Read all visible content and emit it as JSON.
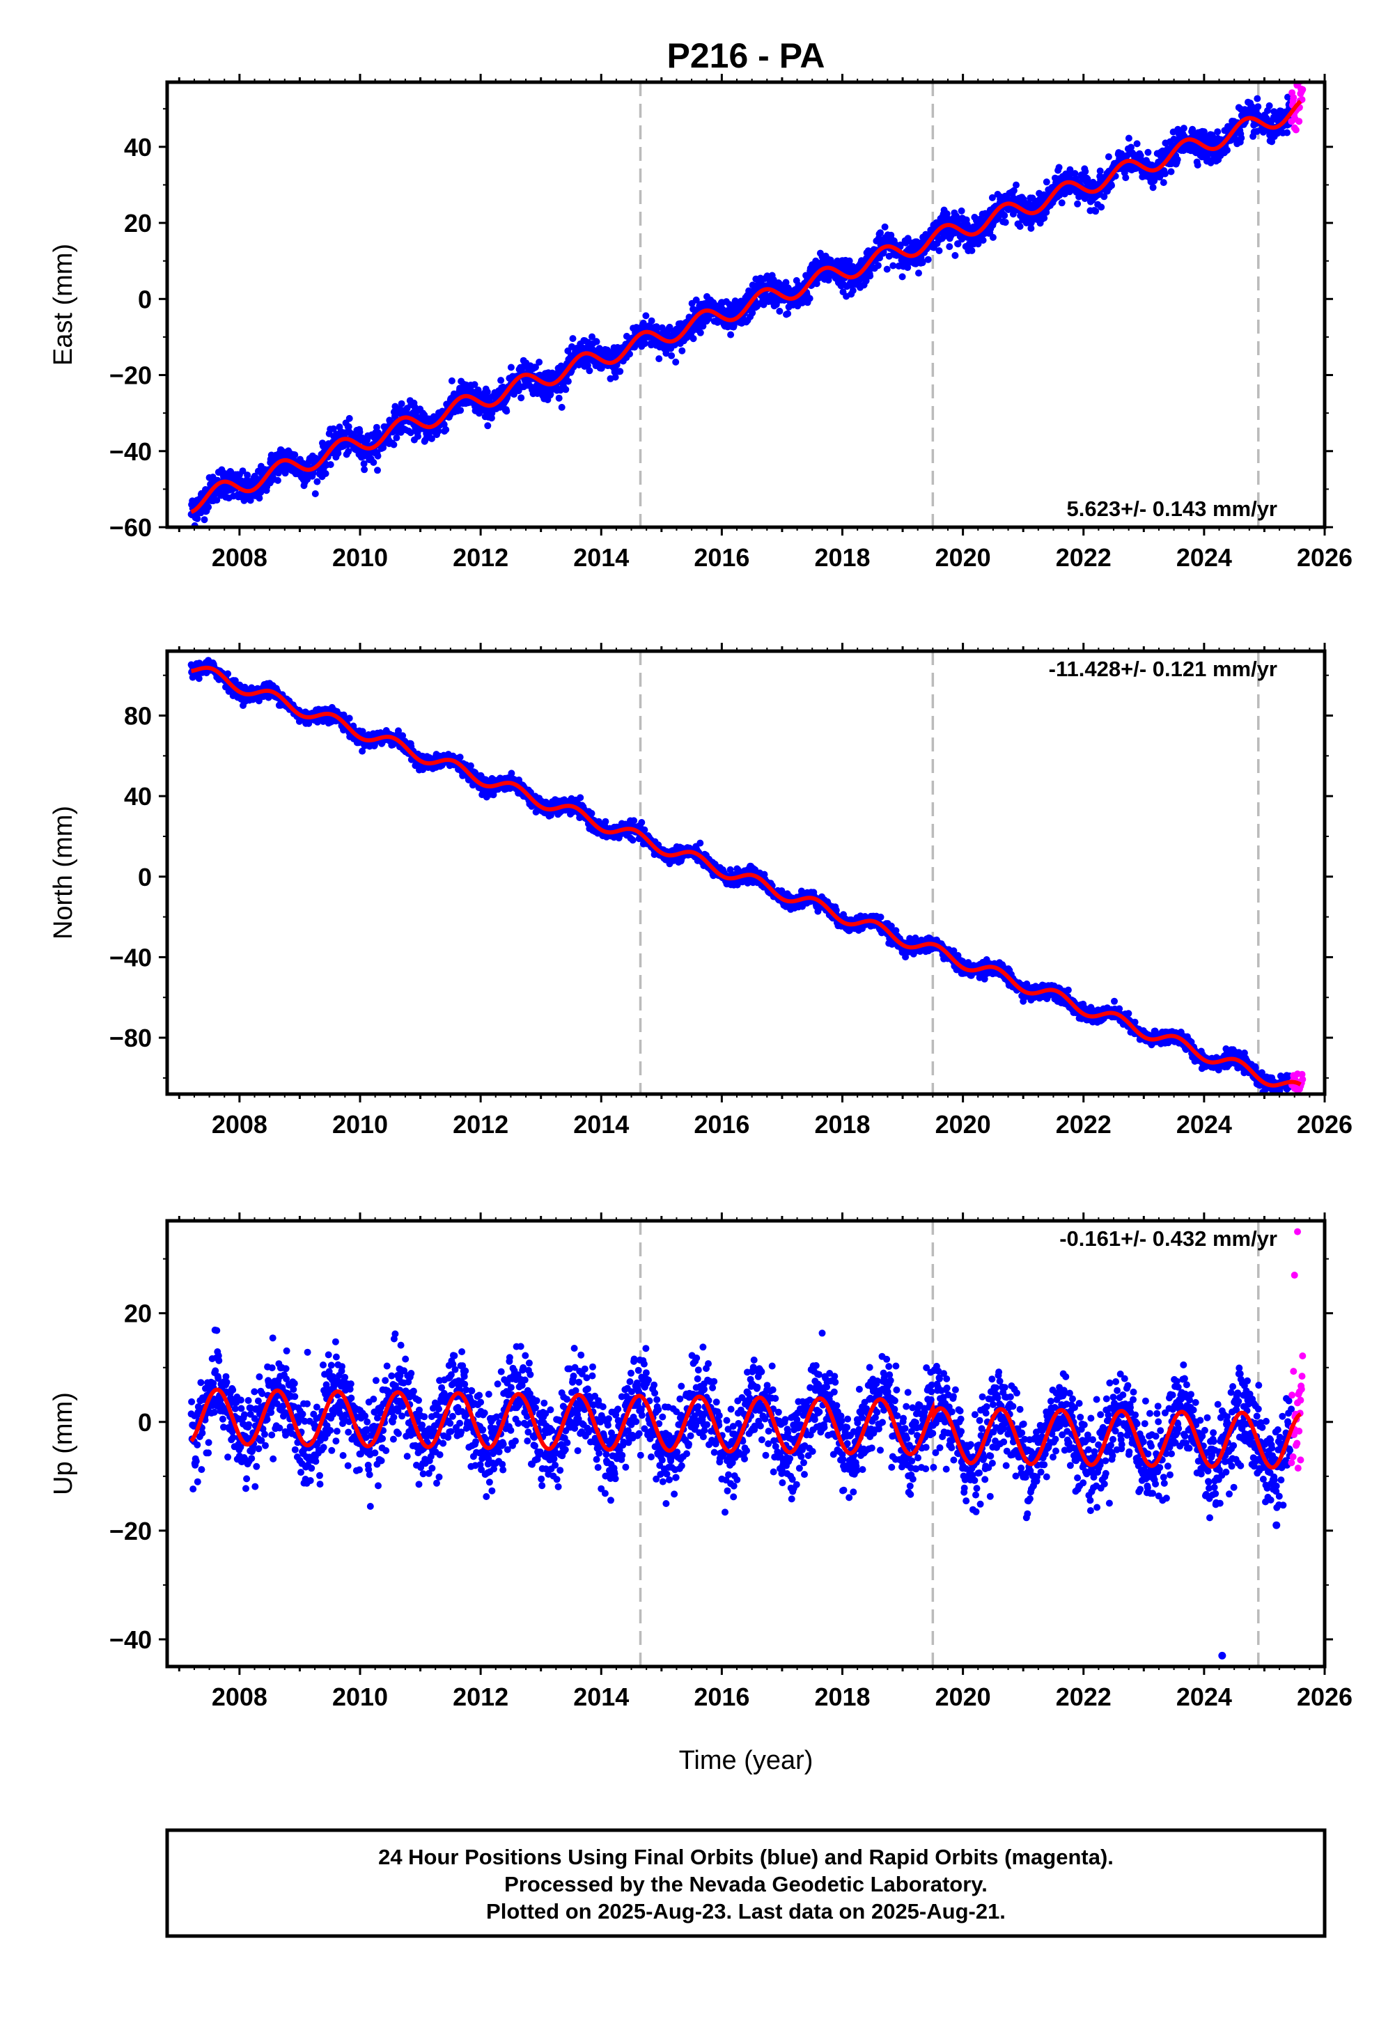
{
  "title": "P216 - PA",
  "colors": {
    "final_orbits": "#0000ff",
    "rapid_orbits": "#ff00ff",
    "model": "#ff0000",
    "event_lines": "#bbbbbb",
    "frame": "#000000"
  },
  "x_label": "Time (year)",
  "footer": {
    "line1": "24 Hour Positions Using Final Orbits (blue) and Rapid Orbits (magenta).",
    "line2": "Processed by the Nevada Geodetic Laboratory.",
    "line3": "Plotted on 2025-Aug-23. Last data on 2025-Aug-21."
  },
  "chart_data": [
    {
      "type": "scatter",
      "component": "east",
      "ylabel": "East (mm)",
      "xlim": [
        2006.8,
        2026.0
      ],
      "ylim": [
        -60,
        57
      ],
      "xticks": [
        2008,
        2010,
        2012,
        2014,
        2016,
        2018,
        2020,
        2022,
        2024,
        2026
      ],
      "yticks": [
        -60,
        -40,
        -20,
        0,
        20,
        40
      ],
      "rate_label": "5.623+/- 0.143 mm/yr",
      "rate_position": "bottom-right",
      "grid": false,
      "event_lines": [
        2014.65,
        2019.5,
        2024.9
      ],
      "final_span": [
        2007.2,
        2025.45
      ],
      "rapid_span": [
        2025.45,
        2025.64
      ],
      "model": {
        "start": 2007.2,
        "end": 2025.6,
        "intercept": -53.5,
        "rate": 5.623,
        "amp": 2.5,
        "phase": 0.45,
        "steps": [
          [
            2019.5,
            0
          ]
        ],
        "noise": 2.0
      },
      "series": [
        {
          "name": "Final Orbits (blue)",
          "x": [
            2007.3,
            2008.0,
            2010.0,
            2012.0,
            2014.0,
            2016.0,
            2018.0,
            2020.0,
            2022.0,
            2024.0,
            2025.4
          ],
          "y": [
            -53,
            -48,
            -37,
            -26,
            -15,
            -1,
            10,
            21,
            32,
            43,
            46
          ]
        },
        {
          "name": "Rapid Orbits (magenta)",
          "x": [
            2025.5,
            2025.55,
            2025.6
          ],
          "y": [
            45,
            50,
            54
          ]
        },
        {
          "name": "model",
          "x": [
            2007.2,
            2025.6
          ],
          "y": [
            -53.5,
            46.0
          ]
        }
      ]
    },
    {
      "type": "scatter",
      "component": "north",
      "ylabel": "North (mm)",
      "xlim": [
        2006.8,
        2026.0
      ],
      "ylim": [
        -108,
        112
      ],
      "xticks": [
        2008,
        2010,
        2012,
        2014,
        2016,
        2018,
        2020,
        2022,
        2024,
        2026
      ],
      "yticks": [
        -80,
        -40,
        0,
        40,
        80
      ],
      "rate_label": "-11.428+/- 0.121 mm/yr",
      "rate_position": "top-right",
      "grid": false,
      "event_lines": [
        2014.65,
        2019.5,
        2024.9
      ],
      "final_span": [
        2007.2,
        2025.45
      ],
      "rapid_span": [
        2025.45,
        2025.64
      ],
      "model": {
        "start": 2007.2,
        "end": 2025.6,
        "intercept": 104.0,
        "rate": -11.428,
        "amp": 3.2,
        "phase": 0.3,
        "steps": [],
        "noise": 1.8
      },
      "series": [
        {
          "name": "Final Orbits (blue)",
          "x": [
            2007.3,
            2008.0,
            2010.0,
            2012.0,
            2014.0,
            2016.0,
            2018.0,
            2020.0,
            2022.0,
            2024.0,
            2025.4
          ],
          "y": [
            102,
            95,
            72,
            50,
            26,
            2,
            -22,
            -44,
            -67,
            -90,
            -101
          ]
        },
        {
          "name": "Rapid Orbits (magenta)",
          "x": [
            2025.5,
            2025.55,
            2025.6
          ],
          "y": [
            -101,
            -98,
            -104
          ]
        },
        {
          "name": "model",
          "x": [
            2007.2,
            2025.6
          ],
          "y": [
            104,
            -101
          ]
        }
      ]
    },
    {
      "type": "scatter",
      "component": "up",
      "ylabel": "Up (mm)",
      "xlim": [
        2006.8,
        2026.0
      ],
      "ylim": [
        -45,
        37
      ],
      "xticks": [
        2008,
        2010,
        2012,
        2014,
        2016,
        2018,
        2020,
        2022,
        2024,
        2026
      ],
      "yticks": [
        -40,
        -20,
        0,
        20
      ],
      "rate_label": "-0.161+/- 0.432 mm/yr",
      "rate_position": "top-right",
      "grid": false,
      "event_lines": [
        2014.65,
        2019.5,
        2024.9
      ],
      "final_span": [
        2007.2,
        2025.45
      ],
      "rapid_span": [
        2025.45,
        2025.64
      ],
      "model": {
        "start": 2007.2,
        "end": 2025.6,
        "intercept": 1.0,
        "rate": -0.161,
        "amp": 5.0,
        "phase": 0.38,
        "steps": [
          [
            2019.5,
            -1.5
          ]
        ],
        "noise": 4.0
      },
      "series": [
        {
          "name": "Final Orbits (blue)",
          "x": [
            2007.7,
            2008.2,
            2014.6,
            2015.7,
            2019.2,
            2023.6,
            2024.3,
            2025.2
          ],
          "y": [
            6,
            -4,
            6,
            6,
            -5,
            3,
            -43,
            -19
          ]
        },
        {
          "name": "Rapid Orbits (magenta)",
          "x": [
            2025.5,
            2025.55,
            2025.6
          ],
          "y": [
            27,
            35,
            4
          ]
        },
        {
          "name": "model",
          "x": [
            2007.2,
            2025.6
          ],
          "y": [
            -3,
            -1
          ]
        }
      ]
    }
  ]
}
